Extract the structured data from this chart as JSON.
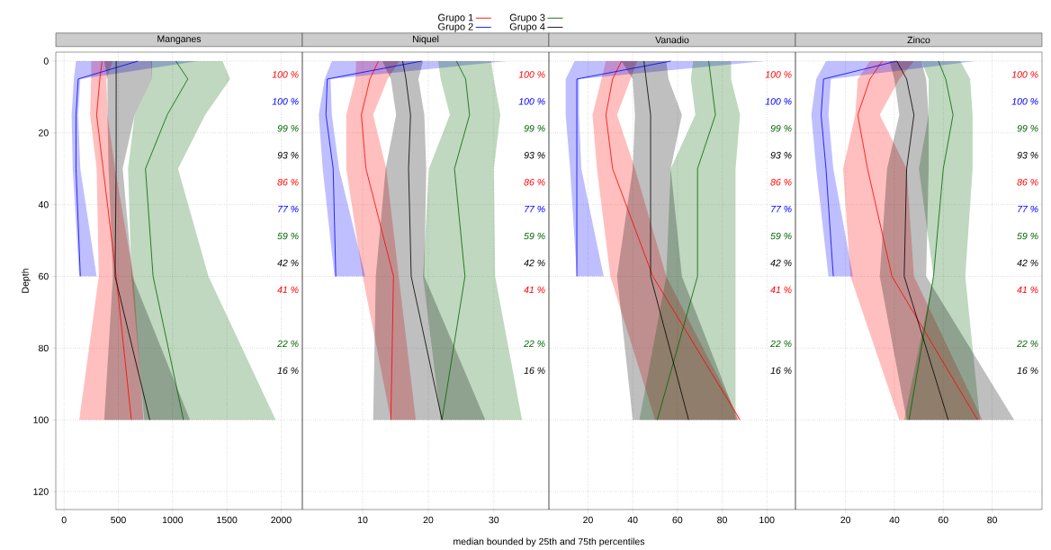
{
  "chart_data": [
    {
      "type": "line",
      "orientation": "horizontal",
      "title": "Manganes",
      "ylabel": "Depth",
      "grid": true,
      "x": [
        0,
        5,
        15,
        30,
        60,
        100
      ],
      "xlim": [
        -76,
        2195
      ],
      "xticks": [
        0,
        500,
        1000,
        1500,
        2000
      ],
      "ylim": [
        125,
        -2.5
      ],
      "yticks": [
        0,
        20,
        40,
        60,
        80,
        100,
        120
      ],
      "series": [
        {
          "color": "#ff0000",
          "values": [
            350,
            330,
            300,
            360,
            480,
            620
          ],
          "lower": [
            250,
            250,
            240,
            300,
            320,
            140
          ],
          "upper": [
            450,
            390,
            400,
            470,
            640,
            730
          ]
        },
        {
          "color": "#0000ff",
          "x": [
            0,
            5,
            15,
            30,
            60
          ],
          "values": [
            680,
            130,
            110,
            110,
            150
          ],
          "lower": [
            110,
            90,
            70,
            80,
            140
          ],
          "upper": [
            1230,
            150,
            130,
            150,
            300
          ]
        },
        {
          "color": "#006400",
          "values": [
            1030,
            1140,
            950,
            750,
            820,
            1100
          ],
          "lower": [
            800,
            810,
            650,
            590,
            620,
            740
          ],
          "upper": [
            1460,
            1530,
            1300,
            1050,
            1330,
            1950
          ]
        },
        {
          "color": "#000000",
          "values": [
            480,
            480,
            480,
            480,
            470,
            790
          ],
          "lower": [
            370,
            400,
            400,
            410,
            450,
            370
          ],
          "upper": [
            810,
            810,
            650,
            540,
            630,
            1160
          ]
        }
      ],
      "annotations": [
        "100 %",
        "100 %",
        "99 %",
        "93 %",
        "86 %",
        "77 %",
        "59 %",
        "42 %",
        "41 %",
        "22 %",
        "16 %"
      ]
    },
    {
      "type": "line",
      "orientation": "horizontal",
      "title": "Niquel",
      "xlabel": "median bounded by 25th and 75th percentiles",
      "legend": "top",
      "grid": true,
      "tick_labels": "x",
      "x": [
        0,
        5,
        15,
        30,
        60,
        100
      ],
      "xlim": [
        0.8,
        38.4
      ],
      "xticks": [
        10,
        20,
        30
      ],
      "ylim": [
        125,
        -2.5
      ],
      "yticks": [
        0,
        20,
        40,
        60,
        80,
        100,
        120
      ],
      "series": [
        {
          "name": "Grupo 1",
          "color": "#ff0000",
          "values": [
            12.4,
            11.1,
            9.8,
            10.5,
            14.7,
            14.3
          ],
          "lower": [
            9.0,
            8.9,
            7.5,
            7.5,
            10.0,
            14.3
          ],
          "upper": [
            15.6,
            13.8,
            11.6,
            13.6,
            15.5,
            18.1
          ]
        },
        {
          "name": "Grupo 2",
          "color": "#0000ff",
          "x": [
            0,
            5,
            15,
            30,
            60
          ],
          "values": [
            19.0,
            4.6,
            4.4,
            5.5,
            5.9
          ],
          "lower": [
            5.3,
            4.2,
            3.3,
            3.9,
            5.7
          ],
          "upper": [
            32.0,
            5.1,
            5.3,
            6.4,
            10.4
          ]
        },
        {
          "name": "Grupo 3",
          "color": "#006400",
          "values": [
            24.3,
            25.7,
            26.3,
            24.0,
            25.6,
            22.1
          ],
          "lower": [
            21.5,
            21.9,
            23.3,
            20.1,
            19.2,
            21.9
          ],
          "upper": [
            29.6,
            30.0,
            31.0,
            30.0,
            30.2,
            34.3
          ]
        },
        {
          "name": "Grupo 4",
          "color": "#000000",
          "values": [
            16.1,
            16.6,
            17.3,
            17.0,
            17.4,
            22.1
          ],
          "lower": [
            13.0,
            14.3,
            15.1,
            13.5,
            12.0,
            11.6
          ],
          "upper": [
            19.2,
            18.5,
            19.4,
            19.7,
            19.4,
            28.7
          ]
        }
      ],
      "annotations": [
        "100 %",
        "100 %",
        "99 %",
        "93 %",
        "86 %",
        "77 %",
        "59 %",
        "42 %",
        "41 %",
        "22 %",
        "16 %"
      ]
    },
    {
      "type": "line",
      "orientation": "horizontal",
      "title": "Vanadio",
      "grid": true,
      "tick_labels": "x",
      "x": [
        0,
        5,
        15,
        30,
        60,
        100
      ],
      "xlim": [
        2.5,
        112.8
      ],
      "xticks": [
        20,
        40,
        60,
        80,
        100
      ],
      "ylim": [
        125,
        -2.5
      ],
      "yticks": [
        0,
        20,
        40,
        60,
        80,
        100,
        120
      ],
      "series": [
        {
          "color": "#ff0000",
          "values": [
            35,
            31,
            28,
            31,
            49,
            88
          ],
          "lower": [
            28,
            26,
            22,
            24,
            30,
            50
          ],
          "upper": [
            42,
            39,
            33,
            41,
            55,
            88
          ]
        },
        {
          "color": "#0000ff",
          "x": [
            0,
            5,
            15,
            30,
            60
          ],
          "values": [
            57,
            15,
            15,
            15,
            15
          ],
          "lower": [
            14,
            10,
            10,
            12,
            15
          ],
          "upper": [
            99,
            16,
            16,
            17,
            27
          ]
        },
        {
          "color": "#006400",
          "values": [
            74,
            75,
            77,
            69,
            69,
            51
          ],
          "lower": [
            67,
            66,
            68,
            57,
            55,
            43
          ],
          "upper": [
            84,
            84,
            88,
            86,
            86,
            86
          ]
        },
        {
          "color": "#000000",
          "values": [
            45,
            46,
            48,
            48,
            48,
            65
          ],
          "lower": [
            35,
            40,
            41,
            40,
            33,
            40
          ],
          "upper": [
            55,
            56,
            62,
            57,
            62,
            87
          ]
        }
      ],
      "annotations": [
        "100 %",
        "100 %",
        "99 %",
        "93 %",
        "86 %",
        "77 %",
        "59 %",
        "42 %",
        "41 %",
        "22 %",
        "16 %"
      ]
    },
    {
      "type": "line",
      "orientation": "horizontal",
      "title": "Zinco",
      "grid": true,
      "tick_labels": "x",
      "x": [
        0,
        5,
        15,
        30,
        60,
        100
      ],
      "xlim": [
        -0.5,
        100.4
      ],
      "xticks": [
        20,
        40,
        60,
        80
      ],
      "ylim": [
        125,
        -2.5
      ],
      "yticks": [
        0,
        20,
        40,
        60,
        80,
        100,
        120
      ],
      "series": [
        {
          "color": "#ff0000",
          "values": [
            35,
            30,
            25,
            29,
            39,
            74
          ],
          "lower": [
            30,
            25,
            24,
            19,
            22,
            42
          ],
          "upper": [
            48,
            42,
            34,
            45,
            48,
            76
          ]
        },
        {
          "color": "#0000ff",
          "x": [
            0,
            5,
            15,
            30,
            60
          ],
          "values": [
            41,
            11,
            10,
            12,
            15
          ],
          "lower": [
            12,
            8,
            6,
            8,
            13
          ],
          "upper": [
            73,
            14,
            13,
            15,
            23
          ]
        },
        {
          "color": "#006400",
          "values": [
            58,
            61,
            64,
            60,
            56,
            46
          ],
          "lower": [
            51,
            54,
            54,
            50,
            56,
            44
          ],
          "upper": [
            67,
            71,
            72,
            72,
            69,
            75
          ]
        },
        {
          "color": "#000000",
          "values": [
            41,
            45,
            48,
            45,
            44,
            62
          ],
          "lower": [
            38,
            40,
            42,
            37,
            34,
            45
          ],
          "upper": [
            51,
            53,
            54,
            54,
            53,
            89
          ]
        }
      ],
      "annotations": [
        "100 %",
        "100 %",
        "99 %",
        "93 %",
        "86 %",
        "77 %",
        "59 %",
        "42 %",
        "41 %",
        "22 %",
        "16 %"
      ]
    }
  ]
}
